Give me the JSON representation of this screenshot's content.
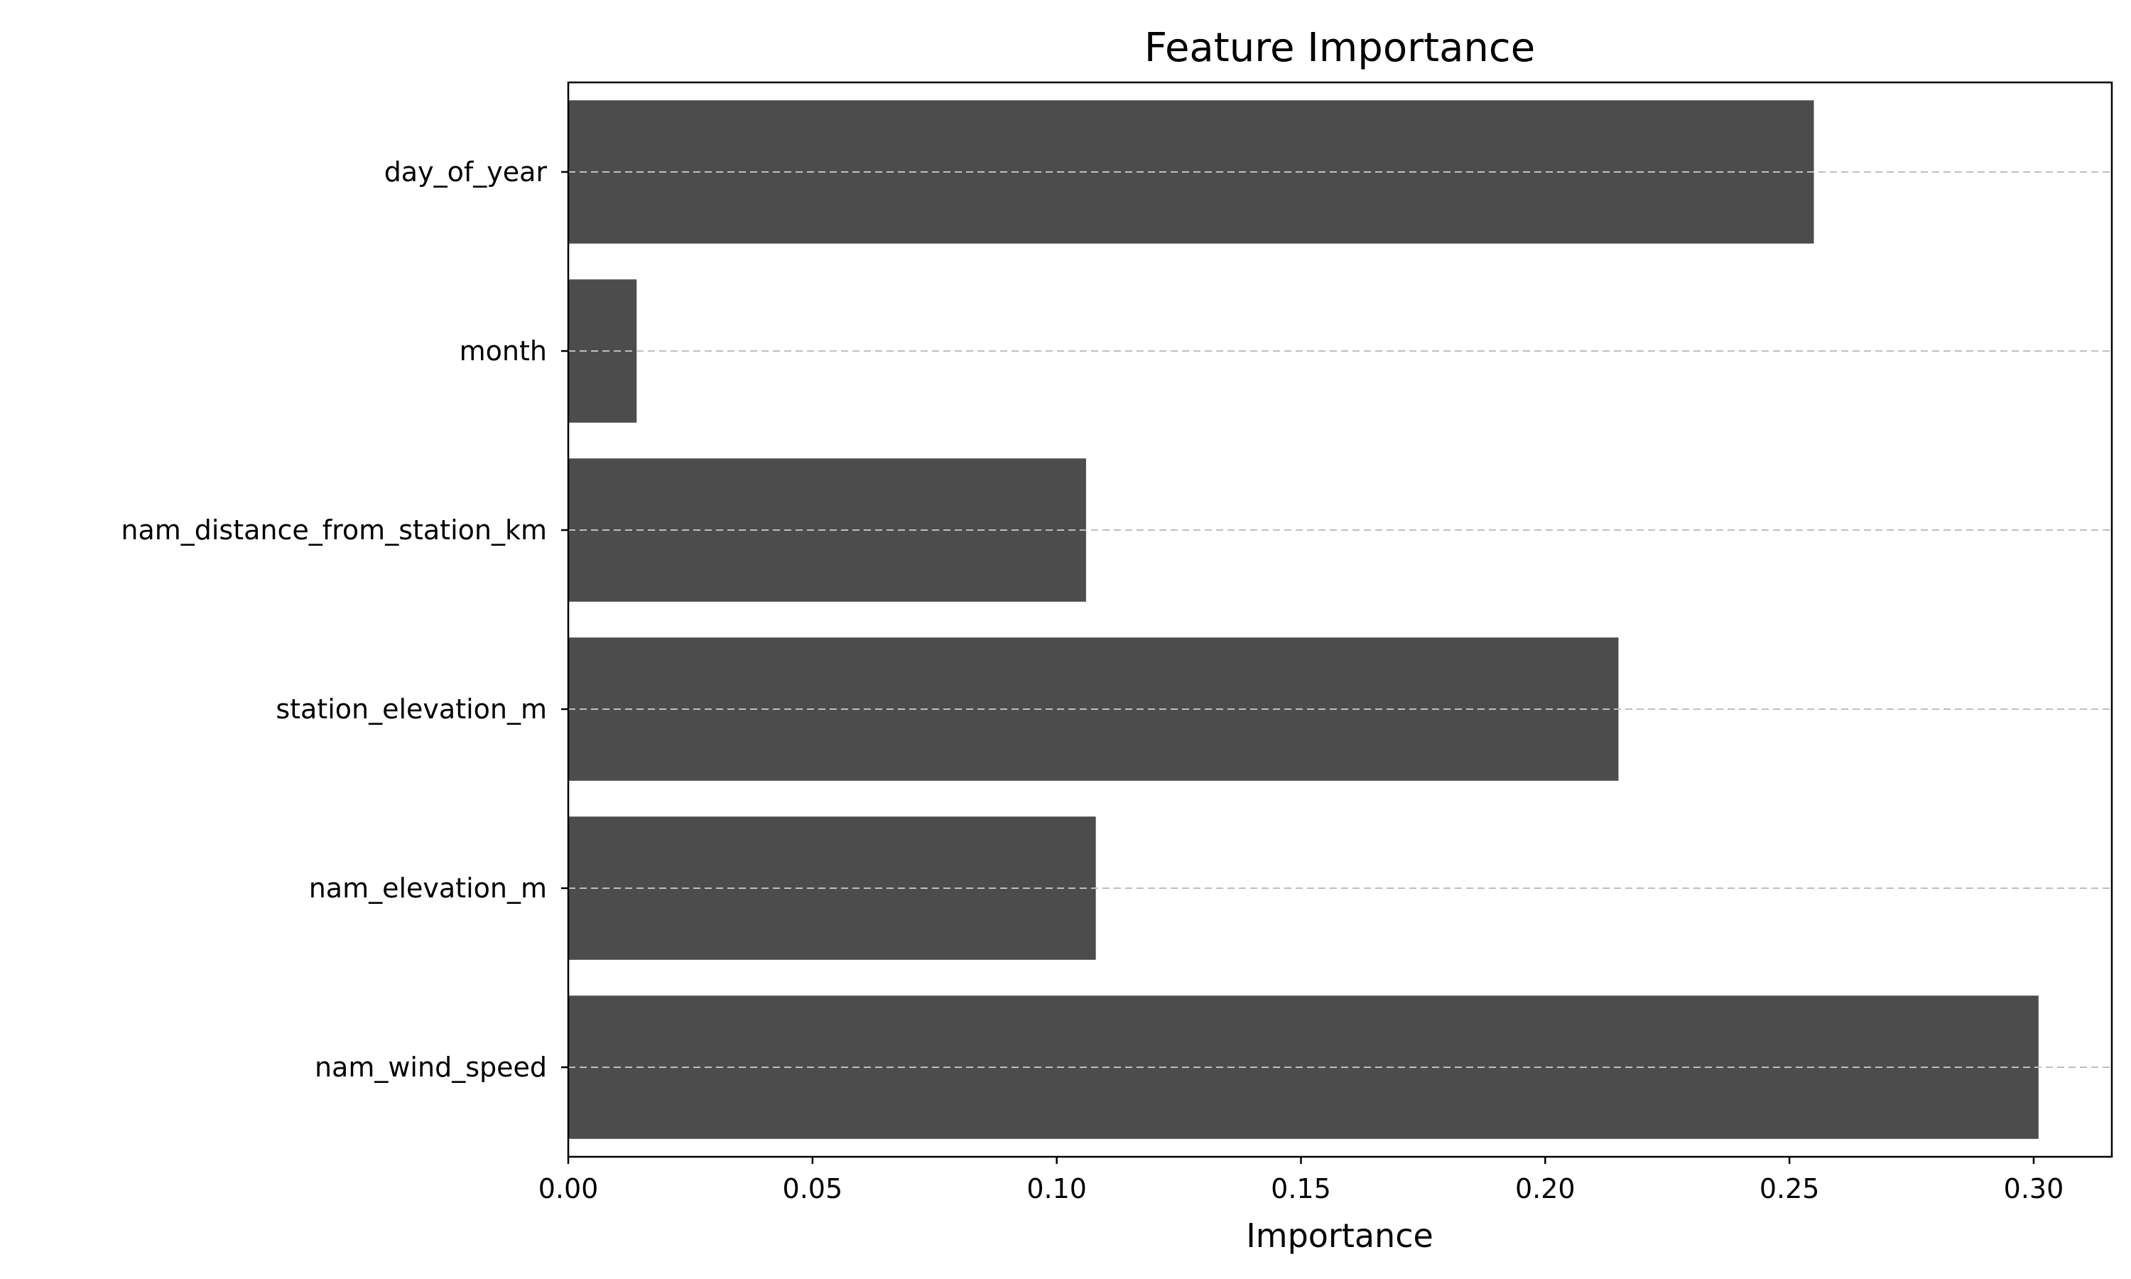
{
  "chart_data": {
    "type": "bar",
    "orientation": "horizontal",
    "title": "Feature Importance",
    "xlabel": "Importance",
    "ylabel": "",
    "categories": [
      "day_of_year",
      "month",
      "nam_distance_from_station_km",
      "station_elevation_m",
      "nam_elevation_m",
      "nam_wind_speed"
    ],
    "values": [
      0.255,
      0.014,
      0.106,
      0.215,
      0.108,
      0.301
    ],
    "xlim": [
      0,
      0.316
    ],
    "xticks": [
      0.0,
      0.05,
      0.1,
      0.15,
      0.2,
      0.25,
      0.3
    ],
    "xtick_labels": [
      "0.00",
      "0.05",
      "0.10",
      "0.15",
      "0.20",
      "0.25",
      "0.30"
    ],
    "grid": "horizontal dashed at each category",
    "bar_color": "#4c4c4c",
    "grid_color": "#bfbfbf"
  }
}
